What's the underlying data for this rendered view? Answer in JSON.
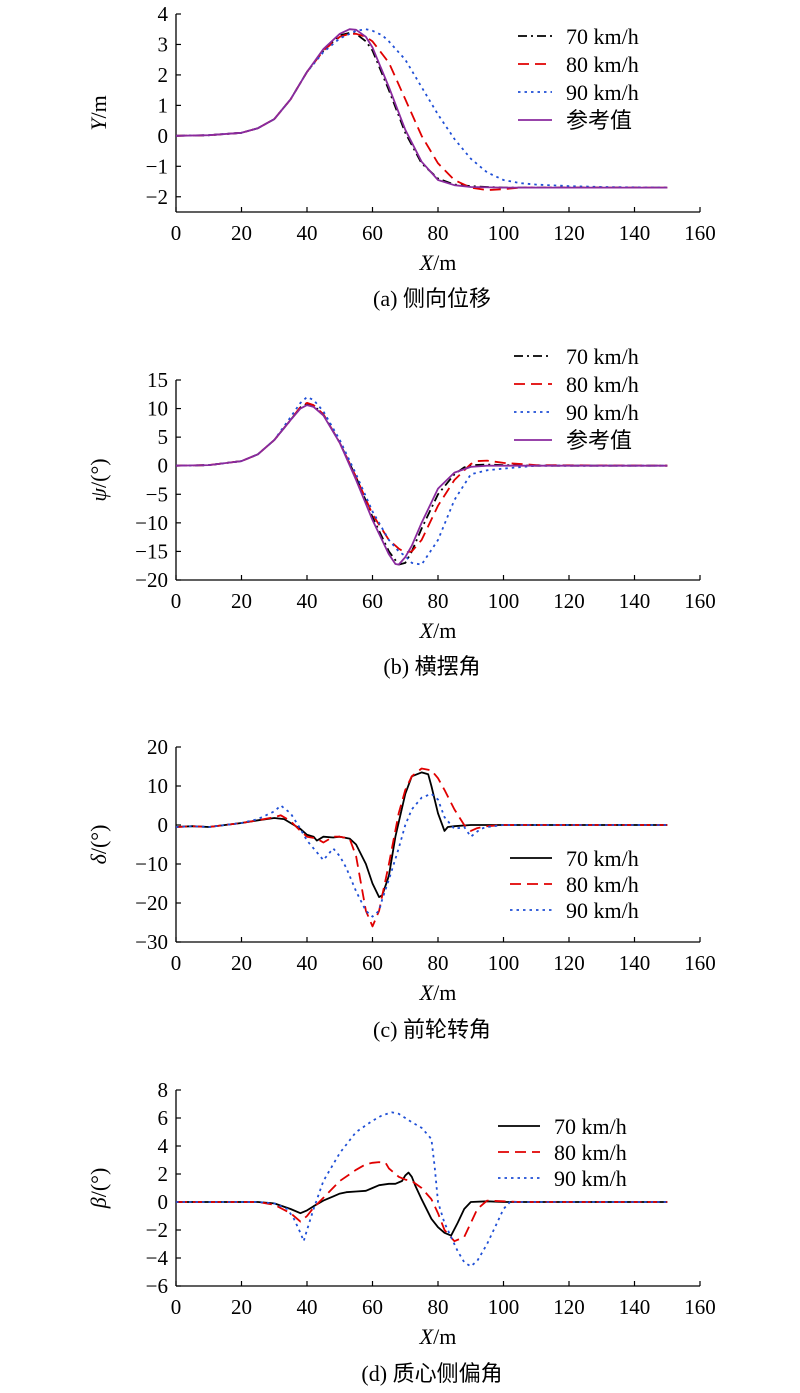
{
  "chart_data": [
    {
      "id": "a",
      "type": "line",
      "caption": "(a) 侧向位移",
      "xlabel": "X/m",
      "ylabel": "Y/m",
      "xlim": [
        0,
        160
      ],
      "ylim": [
        -2.5,
        4
      ],
      "xticks": [
        0,
        20,
        40,
        60,
        80,
        100,
        120,
        140,
        160
      ],
      "yticks": [
        -2,
        -1,
        0,
        1,
        2,
        3,
        4
      ],
      "legend_position": "top-right",
      "series": [
        {
          "name": "70 km/h",
          "color": "#000000",
          "style": "dashdot",
          "x": [
            0,
            10,
            20,
            25,
            30,
            35,
            40,
            45,
            50,
            53,
            55,
            58,
            60,
            65,
            70,
            75,
            80,
            85,
            90,
            95,
            100,
            110,
            120,
            150
          ],
          "y": [
            0,
            0.02,
            0.1,
            0.25,
            0.55,
            1.2,
            2.1,
            2.8,
            3.3,
            3.38,
            3.35,
            3.1,
            2.8,
            1.5,
            0.1,
            -0.9,
            -1.4,
            -1.6,
            -1.65,
            -1.68,
            -1.7,
            -1.7,
            -1.7,
            -1.7
          ]
        },
        {
          "name": "80 km/h",
          "color": "#e00000",
          "style": "dashed",
          "x": [
            0,
            10,
            20,
            25,
            30,
            35,
            40,
            45,
            50,
            53,
            55,
            58,
            60,
            65,
            70,
            75,
            80,
            85,
            90,
            95,
            100,
            105,
            110,
            120,
            150
          ],
          "y": [
            0,
            0.02,
            0.1,
            0.25,
            0.55,
            1.2,
            2.1,
            2.8,
            3.25,
            3.35,
            3.35,
            3.25,
            3.1,
            2.4,
            1.2,
            0,
            -0.9,
            -1.45,
            -1.7,
            -1.78,
            -1.75,
            -1.7,
            -1.7,
            -1.7,
            -1.7
          ]
        },
        {
          "name": "90 km/h",
          "color": "#1f4fd6",
          "style": "dotted",
          "x": [
            0,
            10,
            20,
            25,
            30,
            35,
            40,
            45,
            50,
            55,
            58,
            60,
            63,
            65,
            70,
            75,
            80,
            85,
            90,
            95,
            100,
            105,
            110,
            120,
            130,
            150
          ],
          "y": [
            0,
            0.02,
            0.1,
            0.25,
            0.55,
            1.2,
            2.1,
            2.75,
            3.2,
            3.45,
            3.5,
            3.45,
            3.3,
            3.1,
            2.5,
            1.6,
            0.7,
            -0.1,
            -0.75,
            -1.2,
            -1.45,
            -1.55,
            -1.6,
            -1.65,
            -1.68,
            -1.7
          ]
        },
        {
          "name": "参考值",
          "color": "#8a2a9e",
          "style": "solid",
          "x": [
            0,
            10,
            20,
            25,
            30,
            35,
            40,
            45,
            50,
            53,
            55,
            58,
            60,
            65,
            70,
            75,
            80,
            85,
            90,
            100,
            110,
            150
          ],
          "y": [
            0,
            0.02,
            0.1,
            0.25,
            0.55,
            1.2,
            2.1,
            2.85,
            3.35,
            3.5,
            3.48,
            3.25,
            2.9,
            1.6,
            0.2,
            -0.85,
            -1.45,
            -1.62,
            -1.68,
            -1.7,
            -1.7,
            -1.7
          ]
        }
      ]
    },
    {
      "id": "b",
      "type": "line",
      "caption": "(b) 横摆角",
      "xlabel": "X/m",
      "ylabel": "ψ/(°)",
      "xlim": [
        0,
        160
      ],
      "ylim": [
        -20,
        15
      ],
      "xticks": [
        0,
        20,
        40,
        60,
        80,
        100,
        120,
        140,
        160
      ],
      "yticks": [
        -20,
        -15,
        -10,
        -5,
        0,
        5,
        10,
        15
      ],
      "legend_position": "top-right",
      "series": [
        {
          "name": "70 km/h",
          "color": "#000000",
          "style": "dashdot",
          "x": [
            0,
            10,
            20,
            25,
            30,
            35,
            38,
            40,
            42,
            45,
            50,
            55,
            60,
            65,
            68,
            70,
            72,
            75,
            80,
            85,
            88,
            90,
            95,
            100,
            110,
            150
          ],
          "y": [
            0,
            0.1,
            0.8,
            2,
            4.5,
            8,
            10.2,
            10.8,
            10.5,
            9,
            4,
            -2,
            -9,
            -15,
            -17.3,
            -17,
            -15,
            -11,
            -5,
            -1.5,
            -0.3,
            0.1,
            0.2,
            0.1,
            0,
            0
          ]
        },
        {
          "name": "80 km/h",
          "color": "#e00000",
          "style": "dashed",
          "x": [
            0,
            10,
            20,
            25,
            30,
            35,
            38,
            40,
            42,
            45,
            50,
            55,
            60,
            65,
            68,
            70,
            72,
            75,
            80,
            85,
            90,
            92,
            95,
            100,
            110,
            150
          ],
          "y": [
            0,
            0.1,
            0.8,
            2,
            4.5,
            8,
            10.3,
            11,
            10.6,
            9,
            4,
            -2,
            -8.5,
            -13,
            -14.5,
            -15.2,
            -15,
            -13,
            -7,
            -2.5,
            0.3,
            0.8,
            0.9,
            0.5,
            0.1,
            0
          ]
        },
        {
          "name": "90 km/h",
          "color": "#1f4fd6",
          "style": "dotted",
          "x": [
            0,
            10,
            20,
            25,
            30,
            35,
            38,
            40,
            42,
            45,
            50,
            55,
            60,
            65,
            68,
            70,
            72,
            75,
            80,
            85,
            90,
            95,
            100,
            110,
            150
          ],
          "y": [
            0,
            0.1,
            0.8,
            2,
            4.5,
            8.5,
            11,
            12,
            11.5,
            9.5,
            4.5,
            -1.5,
            -8,
            -13,
            -15,
            -15.8,
            -17,
            -17.3,
            -13,
            -6,
            -1.5,
            -0.8,
            -0.5,
            0,
            0
          ]
        },
        {
          "name": "参考值",
          "color": "#8a2a9e",
          "style": "solid",
          "x": [
            0,
            10,
            20,
            25,
            30,
            35,
            38,
            40,
            42,
            45,
            50,
            55,
            60,
            65,
            67,
            68,
            70,
            72,
            75,
            80,
            85,
            90,
            95,
            100,
            150
          ],
          "y": [
            0,
            0.1,
            0.8,
            2,
            4.5,
            8,
            10,
            10.6,
            10.3,
            8.8,
            4,
            -2.5,
            -9.5,
            -15.5,
            -17.2,
            -17.3,
            -16,
            -14,
            -10,
            -4,
            -1.2,
            -0.2,
            0,
            0,
            0
          ]
        }
      ]
    },
    {
      "id": "c",
      "type": "line",
      "caption": "(c) 前轮转角",
      "xlabel": "X/m",
      "ylabel": "δ/(°)",
      "xlim": [
        0,
        160
      ],
      "ylim": [
        -30,
        20
      ],
      "xticks": [
        0,
        20,
        40,
        60,
        80,
        100,
        120,
        140,
        160
      ],
      "yticks": [
        -30,
        -20,
        -10,
        0,
        10,
        20
      ],
      "legend_position": "bottom-right",
      "series": [
        {
          "name": "70 km/h",
          "color": "#000000",
          "style": "solid",
          "x": [
            0,
            5,
            10,
            15,
            20,
            25,
            30,
            33,
            35,
            38,
            40,
            42,
            43,
            45,
            48,
            50,
            53,
            55,
            58,
            60,
            62,
            63,
            65,
            67,
            70,
            72,
            75,
            77,
            78,
            80,
            82,
            83,
            85,
            90,
            100,
            150
          ],
          "y": [
            -0.5,
            -0.3,
            -0.5,
            0,
            0.5,
            1.2,
            1.8,
            1.5,
            0.5,
            -1,
            -2.5,
            -3,
            -4,
            -3,
            -3.2,
            -3,
            -3.5,
            -5,
            -10,
            -15,
            -18.5,
            -18,
            -13,
            -3,
            8,
            12.5,
            13.5,
            13,
            10,
            3,
            -1.5,
            -0.5,
            -0.3,
            0,
            0,
            0
          ]
        },
        {
          "name": "80 km/h",
          "color": "#e00000",
          "style": "dashed",
          "x": [
            0,
            5,
            10,
            15,
            20,
            25,
            30,
            32,
            35,
            38,
            40,
            43,
            45,
            48,
            50,
            53,
            55,
            58,
            60,
            62,
            63,
            65,
            68,
            70,
            72,
            75,
            78,
            80,
            82,
            85,
            88,
            90,
            92,
            95,
            100,
            150
          ],
          "y": [
            -0.5,
            -0.3,
            -0.5,
            0,
            0.5,
            1.2,
            2,
            2.5,
            1,
            -1.5,
            -3,
            -3.5,
            -4.5,
            -3,
            -3,
            -3.5,
            -8,
            -22,
            -26,
            -22,
            -18,
            -10,
            3,
            9,
            12.5,
            14.5,
            14,
            12,
            9,
            4,
            0,
            -1.5,
            -0.8,
            -0.3,
            0,
            0
          ]
        },
        {
          "name": "90 km/h",
          "color": "#1f4fd6",
          "style": "dotted",
          "x": [
            0,
            5,
            10,
            15,
            20,
            25,
            30,
            32,
            35,
            38,
            40,
            42,
            45,
            48,
            50,
            52,
            55,
            58,
            60,
            62,
            63,
            65,
            68,
            70,
            72,
            75,
            78,
            80,
            82,
            85,
            88,
            90,
            93,
            95,
            100,
            150
          ],
          "y": [
            -0.5,
            -0.3,
            -0.5,
            0,
            0.5,
            1.5,
            3.5,
            5,
            3,
            -1,
            -4,
            -6,
            -9,
            -6,
            -8,
            -11,
            -17,
            -22,
            -23.5,
            -22,
            -19,
            -14,
            -6,
            0,
            4,
            7,
            8,
            6.5,
            2,
            -1,
            -0.5,
            -3,
            -1,
            -0.5,
            0,
            0
          ]
        }
      ]
    },
    {
      "id": "d",
      "type": "line",
      "caption": "(d) 质心侧偏角",
      "xlabel": "X/m",
      "ylabel": "β/(°)",
      "xlim": [
        0,
        160
      ],
      "ylim": [
        -6,
        8
      ],
      "xticks": [
        0,
        20,
        40,
        60,
        80,
        100,
        120,
        140,
        160
      ],
      "yticks": [
        -6,
        -4,
        -2,
        0,
        2,
        4,
        6,
        8
      ],
      "legend_position": "top-right",
      "series": [
        {
          "name": "70 km/h",
          "color": "#000000",
          "style": "solid",
          "x": [
            0,
            10,
            20,
            25,
            30,
            35,
            38,
            40,
            42,
            45,
            48,
            50,
            52,
            55,
            58,
            60,
            62,
            65,
            67,
            69,
            70,
            71,
            72,
            73,
            75,
            78,
            80,
            82,
            84,
            86,
            88,
            90,
            95,
            100,
            150
          ],
          "y": [
            0,
            0,
            0,
            0,
            -0.1,
            -0.5,
            -0.8,
            -0.6,
            -0.3,
            0.1,
            0.4,
            0.6,
            0.7,
            0.75,
            0.8,
            1,
            1.2,
            1.3,
            1.3,
            1.5,
            1.9,
            2.1,
            1.8,
            1.2,
            0.2,
            -1.2,
            -1.8,
            -2.2,
            -2.4,
            -1.5,
            -0.5,
            0,
            0.05,
            0,
            0
          ]
        },
        {
          "name": "80 km/h",
          "color": "#e00000",
          "style": "dashed",
          "x": [
            0,
            10,
            20,
            25,
            30,
            35,
            38,
            40,
            42,
            45,
            50,
            55,
            58,
            60,
            62,
            64,
            65,
            68,
            70,
            72,
            75,
            78,
            80,
            82,
            85,
            88,
            90,
            92,
            95,
            100,
            105,
            150
          ],
          "y": [
            0,
            0,
            0,
            0,
            -0.2,
            -0.8,
            -1.4,
            -1,
            -0.4,
            0.3,
            1.5,
            2.3,
            2.7,
            2.8,
            2.85,
            2.8,
            2.4,
            1.8,
            1.6,
            1.5,
            1,
            0.2,
            -0.8,
            -2,
            -2.8,
            -2.5,
            -1.5,
            -0.5,
            0.1,
            0.05,
            0,
            0
          ]
        },
        {
          "name": "90 km/h",
          "color": "#1f4fd6",
          "style": "dotted",
          "x": [
            0,
            10,
            20,
            25,
            30,
            34,
            36,
            38,
            39,
            40,
            42,
            45,
            50,
            55,
            60,
            63,
            66,
            68,
            70,
            72,
            75,
            78,
            79,
            80,
            82,
            84,
            86,
            88,
            90,
            92,
            95,
            98,
            100,
            102,
            105,
            150
          ],
          "y": [
            0,
            0,
            0,
            0,
            -0.1,
            -0.5,
            -1.2,
            -2.2,
            -2.8,
            -2,
            -0.5,
            1.5,
            3.5,
            5,
            5.8,
            6.2,
            6.4,
            6.3,
            6,
            5.7,
            5.3,
            4.5,
            2.5,
            0,
            -1.5,
            -2.5,
            -3.5,
            -4.3,
            -4.6,
            -4.2,
            -3,
            -1.5,
            -0.5,
            0,
            0,
            0
          ]
        }
      ]
    }
  ]
}
